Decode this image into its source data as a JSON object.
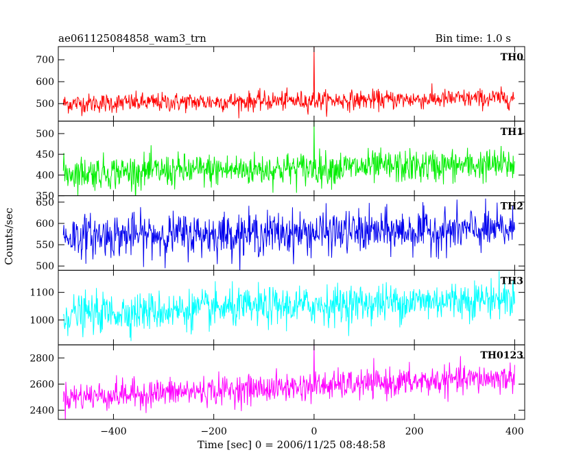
{
  "header": {
    "title": "ae061125084858_wam3_trn",
    "bin_time": "Bin time: 1.0 s"
  },
  "chart_data": {
    "type": "line",
    "title": "ae061125084858_wam3_trn",
    "subtitle": "Bin time: 1.0 s",
    "xlabel": "Time [sec] 0 = 2006/11/25 08:48:58",
    "ylabel": "Counts/sec",
    "xlim": [
      -510,
      420
    ],
    "x_ticks": [
      -400,
      -200,
      0,
      200,
      400
    ],
    "x_tick_labels": [
      "−400",
      "−200",
      "0",
      "200",
      "400"
    ],
    "x_range": [
      -500,
      400
    ],
    "bin_time_s": 1.0,
    "grid": false,
    "series": [
      {
        "name": "TH0",
        "color": "#ff0000",
        "ylim": [
          420,
          760
        ],
        "y_ticks": [
          500,
          600,
          700
        ],
        "baseline_start": 500,
        "baseline_end": 525,
        "noise_sd": 22,
        "spikes": [
          {
            "x": 0,
            "y": 760
          }
        ]
      },
      {
        "name": "TH1",
        "color": "#00ee00",
        "ylim": [
          350,
          530
        ],
        "y_ticks": [
          350,
          400,
          450,
          500
        ],
        "baseline_start": 405,
        "baseline_end": 425,
        "noise_sd": 20,
        "spikes": [
          {
            "x": 0,
            "y": 530
          }
        ]
      },
      {
        "name": "TH2",
        "color": "#0000ee",
        "ylim": [
          490,
          665
        ],
        "y_ticks": [
          500,
          550,
          600,
          650
        ],
        "baseline_start": 570,
        "baseline_end": 585,
        "noise_sd": 25,
        "spikes": []
      },
      {
        "name": "TH3",
        "color": "#00ffff",
        "ylim": [
          910,
          1180
        ],
        "y_ticks": [
          1000,
          1100
        ],
        "baseline_start": 1020,
        "baseline_end": 1080,
        "noise_sd": 35,
        "spikes": []
      },
      {
        "name": "TH0123",
        "color": "#ff00ff",
        "ylim": [
          2330,
          2900
        ],
        "y_ticks": [
          2400,
          2600,
          2800
        ],
        "baseline_start": 2500,
        "baseline_end": 2650,
        "noise_sd": 55,
        "spikes": [
          {
            "x": 0,
            "y": 2900
          }
        ]
      }
    ]
  }
}
